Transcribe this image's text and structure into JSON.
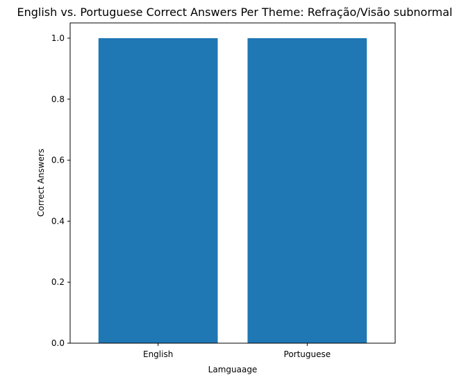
{
  "chart_data": {
    "type": "bar",
    "title": "English vs. Portuguese Correct Answers Per Theme: Refração/Visão subnormal",
    "xlabel": "Lamguaage",
    "ylabel": "Correct Answers",
    "categories": [
      "English",
      "Portuguese"
    ],
    "values": [
      1.0,
      1.0
    ],
    "ylim": [
      0,
      1.05
    ],
    "yticks": [
      "0.0",
      "0.2",
      "0.4",
      "0.6",
      "0.8",
      "1.0"
    ],
    "grid": false,
    "bar_color": "#1f77b4"
  }
}
